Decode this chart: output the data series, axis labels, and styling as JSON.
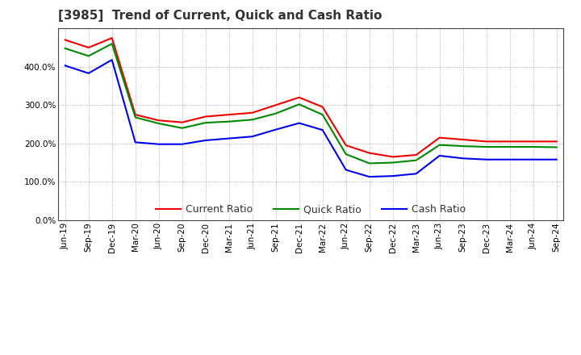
{
  "title": "[3985]  Trend of Current, Quick and Cash Ratio",
  "labels": [
    "Jun-19",
    "Sep-19",
    "Dec-19",
    "Mar-20",
    "Jun-20",
    "Sep-20",
    "Dec-20",
    "Mar-21",
    "Jun-21",
    "Sep-21",
    "Dec-21",
    "Mar-22",
    "Jun-22",
    "Sep-22",
    "Dec-22",
    "Mar-23",
    "Jun-23",
    "Sep-23",
    "Dec-23",
    "Mar-24",
    "Jun-24",
    "Sep-24"
  ],
  "current_ratio": [
    470,
    450,
    475,
    275,
    260,
    255,
    270,
    275,
    280,
    300,
    320,
    295,
    195,
    175,
    165,
    170,
    215,
    210,
    205,
    205,
    205,
    205
  ],
  "quick_ratio": [
    448,
    428,
    460,
    268,
    252,
    240,
    254,
    257,
    262,
    278,
    302,
    275,
    172,
    148,
    150,
    156,
    196,
    193,
    191,
    191,
    191,
    190
  ],
  "cash_ratio": [
    403,
    383,
    418,
    203,
    198,
    198,
    208,
    213,
    218,
    236,
    253,
    235,
    131,
    113,
    115,
    121,
    168,
    161,
    158,
    158,
    158,
    158
  ],
  "current_color": "#ee0000",
  "quick_color": "#008800",
  "cash_color": "#0000ee",
  "line_width": 1.5,
  "ylim": [
    0,
    500
  ],
  "yticks": [
    0,
    100,
    200,
    300,
    400
  ],
  "background_color": "#ffffff",
  "plot_bg_color": "#ffffff",
  "grid_color": "#999999",
  "title_fontsize": 11,
  "tick_fontsize": 7.5,
  "legend_fontsize": 9
}
